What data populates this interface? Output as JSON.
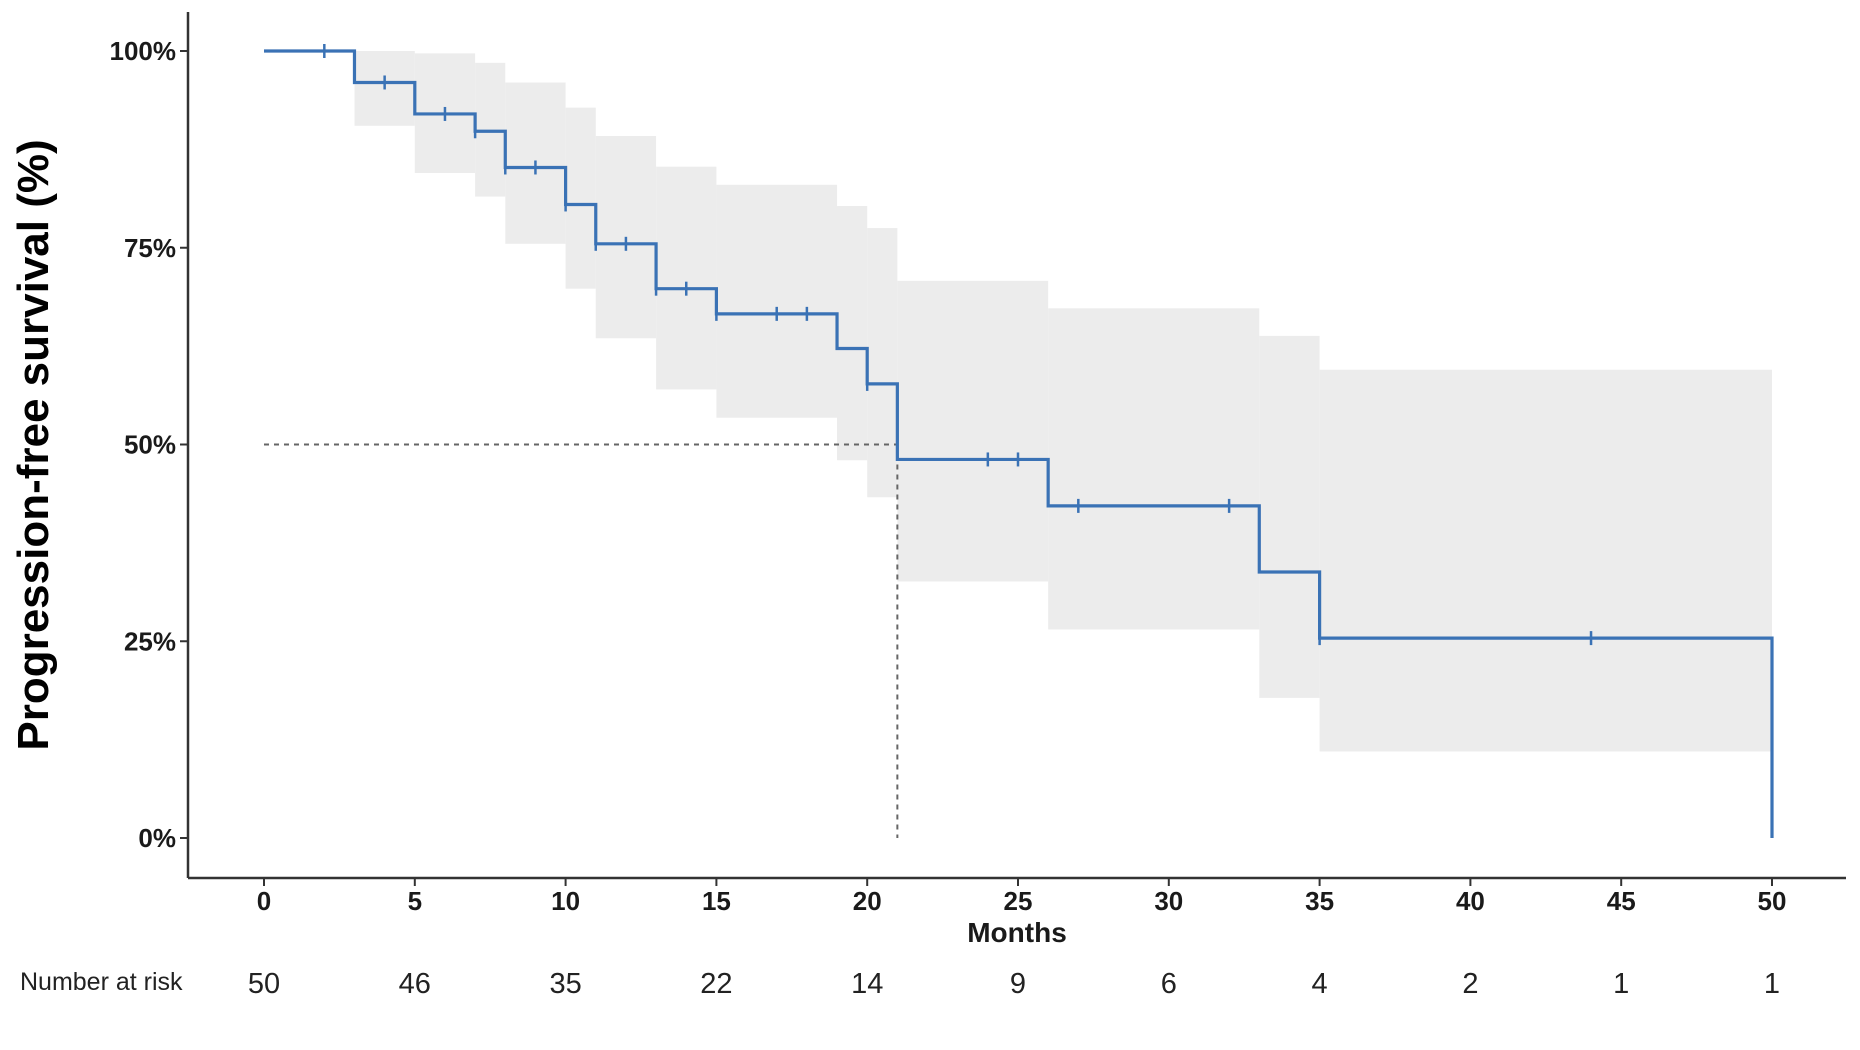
{
  "chart_data": {
    "type": "line",
    "subtype": "kaplan-meier step",
    "title": "",
    "xlabel": "Months",
    "ylabel": "Progression-free survival (%)",
    "xlim": [
      0,
      50
    ],
    "ylim": [
      0,
      100
    ],
    "x_ticks": [
      0,
      5,
      10,
      15,
      20,
      25,
      30,
      35,
      40,
      45,
      50
    ],
    "x_tick_labels": [
      "0",
      "5",
      "10",
      "15",
      "20",
      "25",
      "30",
      "35",
      "40",
      "45",
      "50"
    ],
    "y_ticks": [
      0,
      25,
      50,
      75,
      100
    ],
    "y_tick_labels": [
      "0%",
      "25%",
      "50%",
      "75%",
      "100%"
    ],
    "grid": false,
    "colors": {
      "curve": "#3a72b5",
      "ci_band": "#ececec",
      "median_line": "#666666",
      "axis": "#333333"
    },
    "series": [
      {
        "steps": [
          {
            "x": 0,
            "y": 100
          },
          {
            "x": 3,
            "y": 96
          },
          {
            "x": 5,
            "y": 92
          },
          {
            "x": 7,
            "y": 89.8
          },
          {
            "x": 8,
            "y": 85.2
          },
          {
            "x": 10,
            "y": 80.5
          },
          {
            "x": 11,
            "y": 75.5
          },
          {
            "x": 13,
            "y": 69.8
          },
          {
            "x": 15,
            "y": 66.6
          },
          {
            "x": 19,
            "y": 62.2
          },
          {
            "x": 20,
            "y": 57.7
          },
          {
            "x": 21,
            "y": 48.1
          },
          {
            "x": 26,
            "y": 42.2
          },
          {
            "x": 33,
            "y": 33.8
          },
          {
            "x": 35,
            "y": 25.4
          },
          {
            "x": 50,
            "y": 0
          }
        ],
        "censored": [
          {
            "x": 2,
            "y": 100
          },
          {
            "x": 4,
            "y": 96
          },
          {
            "x": 6,
            "y": 92
          },
          {
            "x": 7,
            "y": 89.8
          },
          {
            "x": 8,
            "y": 85.2
          },
          {
            "x": 9,
            "y": 85.2
          },
          {
            "x": 10,
            "y": 80.5
          },
          {
            "x": 11,
            "y": 75.5
          },
          {
            "x": 12,
            "y": 75.5
          },
          {
            "x": 13,
            "y": 69.8
          },
          {
            "x": 14,
            "y": 69.8
          },
          {
            "x": 15,
            "y": 66.6
          },
          {
            "x": 17,
            "y": 66.6
          },
          {
            "x": 18,
            "y": 66.6
          },
          {
            "x": 20,
            "y": 57.7
          },
          {
            "x": 24,
            "y": 48.1
          },
          {
            "x": 25,
            "y": 48.1
          },
          {
            "x": 27,
            "y": 42.2
          },
          {
            "x": 32,
            "y": 42.2
          },
          {
            "x": 35,
            "y": 25.4
          },
          {
            "x": 44,
            "y": 25.4
          }
        ],
        "confidence_band": [
          {
            "x0": 0,
            "x1": 3,
            "lower": 100,
            "upper": 100
          },
          {
            "x0": 3,
            "x1": 5,
            "lower": 90.5,
            "upper": 100
          },
          {
            "x0": 5,
            "x1": 7,
            "lower": 84.5,
            "upper": 99.7
          },
          {
            "x0": 7,
            "x1": 8,
            "lower": 81.5,
            "upper": 98.5
          },
          {
            "x0": 8,
            "x1": 10,
            "lower": 75.5,
            "upper": 96
          },
          {
            "x0": 10,
            "x1": 11,
            "lower": 69.8,
            "upper": 92.8
          },
          {
            "x0": 11,
            "x1": 13,
            "lower": 63.5,
            "upper": 89.2
          },
          {
            "x0": 13,
            "x1": 15,
            "lower": 57,
            "upper": 85.3
          },
          {
            "x0": 15,
            "x1": 19,
            "lower": 53.4,
            "upper": 83
          },
          {
            "x0": 19,
            "x1": 20,
            "lower": 48,
            "upper": 80.3
          },
          {
            "x0": 20,
            "x1": 21,
            "lower": 43.3,
            "upper": 77.5
          },
          {
            "x0": 21,
            "x1": 26,
            "lower": 32.6,
            "upper": 70.8
          },
          {
            "x0": 26,
            "x1": 33,
            "lower": 26.5,
            "upper": 67.3
          },
          {
            "x0": 33,
            "x1": 35,
            "lower": 17.8,
            "upper": 63.8
          },
          {
            "x0": 35,
            "x1": 50,
            "lower": 11,
            "upper": 59.5
          }
        ]
      }
    ],
    "median": {
      "x": 21,
      "y": 50
    },
    "risk_table": {
      "title": "Number at risk",
      "times": [
        0,
        5,
        10,
        15,
        20,
        25,
        30,
        35,
        40,
        45,
        50
      ],
      "values": [
        "50",
        "46",
        "35",
        "22",
        "14",
        "9",
        "6",
        "4",
        "2",
        "1",
        "1"
      ]
    }
  }
}
